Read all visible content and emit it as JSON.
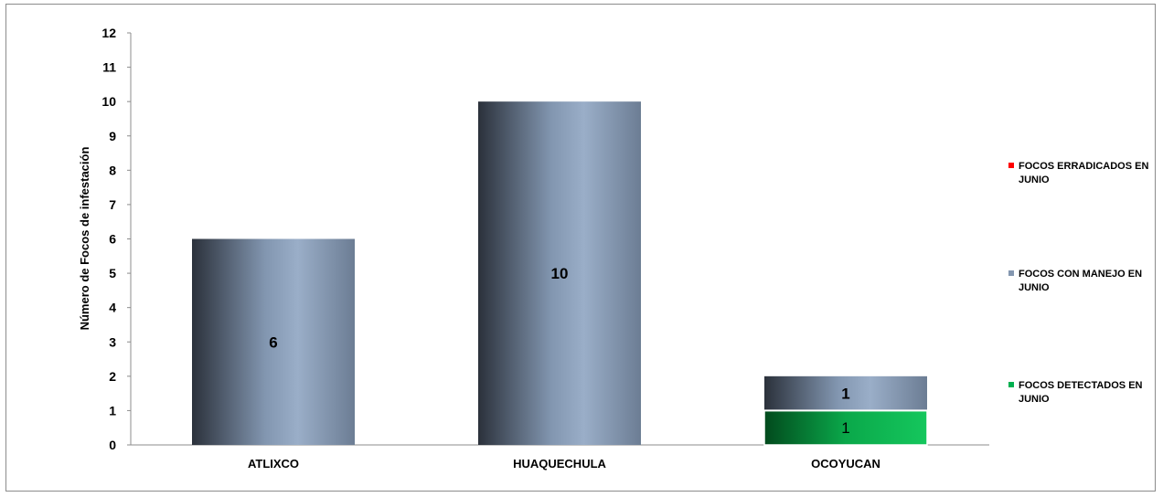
{
  "chart_data": {
    "type": "bar",
    "stacked": true,
    "title": "",
    "xlabel": "",
    "ylabel": "Número de Focos de infestación",
    "ylim": [
      0,
      12
    ],
    "yticks": [
      "0",
      "1",
      "2",
      "3",
      "4",
      "5",
      "6",
      "7",
      "8",
      "9",
      "10",
      "11",
      "12"
    ],
    "grid": false,
    "legend_position": "right",
    "categories": [
      "ATLIXCO",
      "HUAQUECHULA",
      "OCOYUCAN"
    ],
    "series": [
      {
        "name": "FOCOS DETECTADOS EN JUNIO",
        "values": [
          0,
          0,
          1
        ],
        "labels": [
          "",
          "",
          "1"
        ],
        "color": "#00b050"
      },
      {
        "name": "FOCOS CON MANEJO EN JUNIO",
        "values": [
          6,
          10,
          1
        ],
        "labels": [
          "6",
          "10",
          "1"
        ],
        "color": "#8497b0"
      },
      {
        "name": "FOCOS ERRADICADOS EN JUNIO",
        "values": [
          0,
          0,
          0
        ],
        "labels": [
          "",
          "",
          ""
        ],
        "color": "#ff0000"
      }
    ]
  }
}
